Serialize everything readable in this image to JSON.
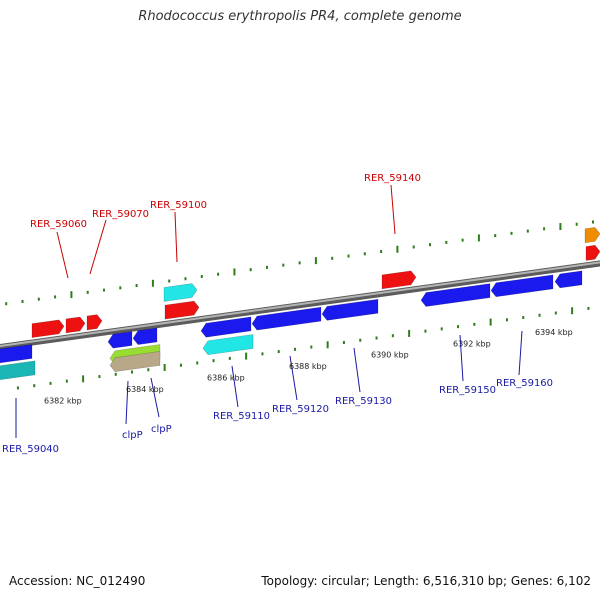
{
  "title": "Rhodococcus erythropolis PR4, complete genome",
  "footer": {
    "accession": "Accession: NC_012490",
    "summary": "Topology: circular; Length: 6,516,310 bp; Genes: 6,102"
  },
  "colors": {
    "backbone": "#888888",
    "tick": "#2e7d1a",
    "top_label": "#cc0000",
    "bottom_label": "#1a1aa6",
    "gene_red": "#ee1111",
    "gene_blue": "#1a1aee",
    "gene_cyan": "#22e6e6",
    "gene_teal": "#1ab5b5",
    "gene_lime": "#99dd33",
    "gene_tan": "#b8a888",
    "gene_orange": "#f08c00"
  },
  "scale_labels": [
    "6382 kbp",
    "6384 kbp",
    "6386 kbp",
    "6388 kbp",
    "6390 kbp",
    "6392 kbp",
    "6394 kbp"
  ],
  "gene_labels_top": [
    "RER_59060",
    "RER_59070",
    "RER_59100",
    "RER_59140"
  ],
  "gene_labels_bottom": [
    "RER_59040",
    "clpP",
    "clpP",
    "RER_59110",
    "RER_59120",
    "RER_59130",
    "RER_59150",
    "RER_59160"
  ],
  "genes": [
    {
      "strand": "forward",
      "color": "gene_red"
    },
    {
      "strand": "forward",
      "color": "gene_red"
    },
    {
      "strand": "forward",
      "color": "gene_red"
    },
    {
      "strand": "forward",
      "color": "gene_cyan"
    },
    {
      "strand": "forward",
      "color": "gene_red"
    },
    {
      "strand": "forward",
      "color": "gene_red"
    },
    {
      "strand": "forward",
      "color": "gene_orange"
    },
    {
      "strand": "forward",
      "color": "gene_red"
    },
    {
      "strand": "reverse",
      "color": "gene_blue"
    },
    {
      "strand": "reverse",
      "color": "gene_teal"
    },
    {
      "strand": "reverse",
      "color": "gene_blue"
    },
    {
      "strand": "reverse",
      "color": "gene_blue"
    },
    {
      "strand": "reverse",
      "color": "gene_lime"
    },
    {
      "strand": "reverse",
      "color": "gene_tan"
    },
    {
      "strand": "reverse",
      "color": "gene_blue"
    },
    {
      "strand": "reverse",
      "color": "gene_cyan"
    },
    {
      "strand": "reverse",
      "color": "gene_blue"
    },
    {
      "strand": "reverse",
      "color": "gene_blue"
    },
    {
      "strand": "reverse",
      "color": "gene_blue"
    },
    {
      "strand": "reverse",
      "color": "gene_blue"
    },
    {
      "strand": "reverse",
      "color": "gene_blue"
    }
  ]
}
